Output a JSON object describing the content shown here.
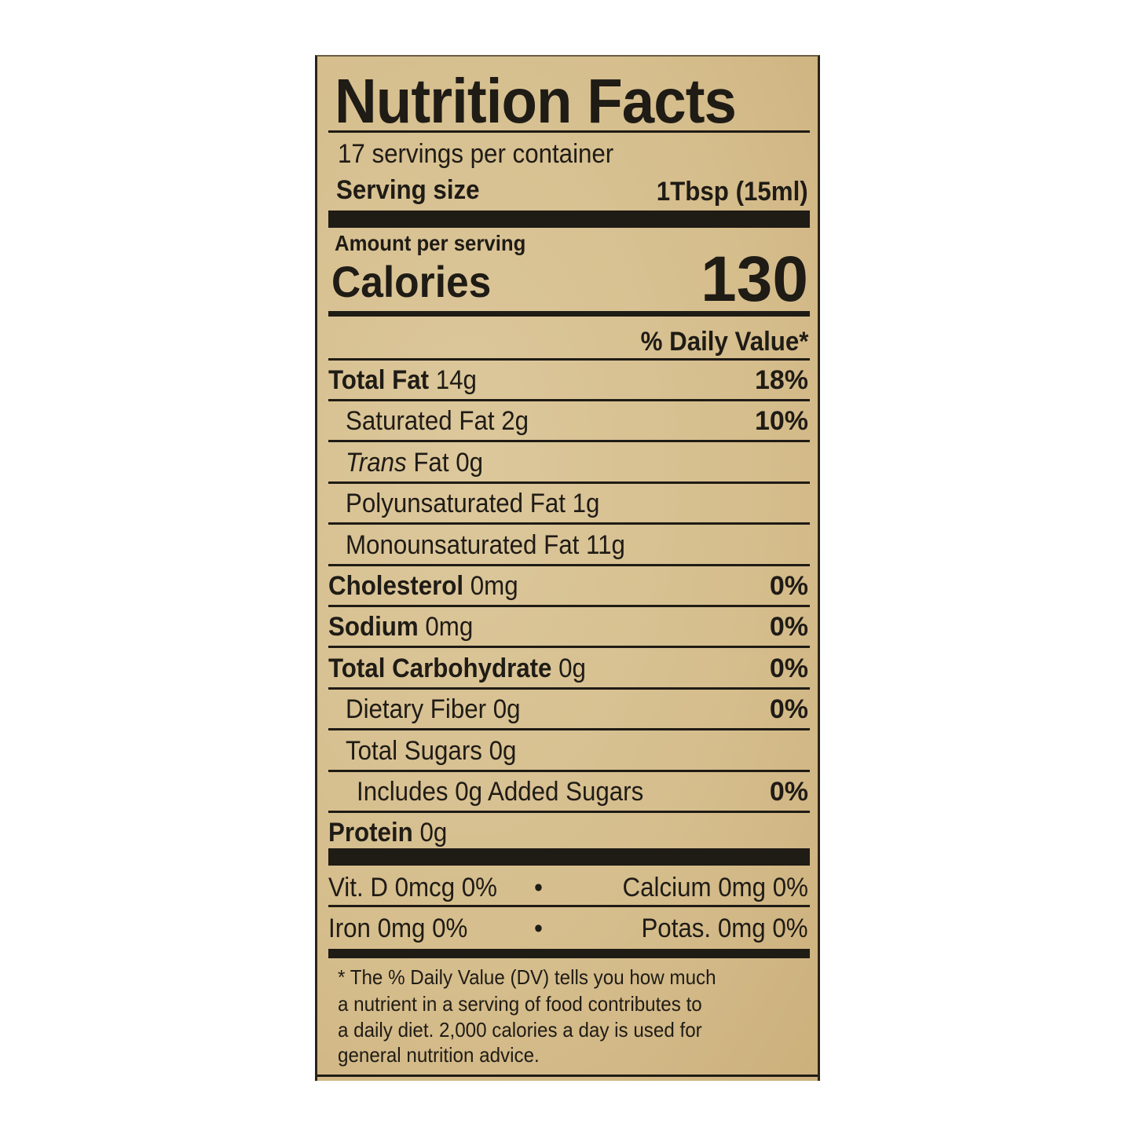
{
  "title": "Nutrition Facts",
  "servings_per_container": "17 servings per container",
  "serving_size_label": "Serving size",
  "serving_size_value": "1Tbsp (15ml)",
  "amount_per_serving": "Amount per serving",
  "calories_label": "Calories",
  "calories_value": "130",
  "daily_value_header": "% Daily Value*",
  "rows": [
    {
      "bold": "Total Fat",
      "italic": "",
      "rest": " 14g",
      "dv": "18%",
      "indent": 0
    },
    {
      "bold": "",
      "italic": "",
      "rest": "Saturated Fat 2g",
      "dv": "10%",
      "indent": 1
    },
    {
      "bold": "",
      "italic": "Trans",
      "rest": " Fat 0g",
      "dv": "",
      "indent": 1
    },
    {
      "bold": "",
      "italic": "",
      "rest": "Polyunsaturated Fat 1g",
      "dv": "",
      "indent": 1
    },
    {
      "bold": "",
      "italic": "",
      "rest": "Monounsaturated Fat 11g",
      "dv": "",
      "indent": 1
    },
    {
      "bold": "Cholesterol",
      "italic": "",
      "rest": " 0mg",
      "dv": "0%",
      "indent": 0
    },
    {
      "bold": "Sodium",
      "italic": "",
      "rest": " 0mg",
      "dv": "0%",
      "indent": 0
    },
    {
      "bold": "Total Carbohydrate",
      "italic": "",
      "rest": " 0g",
      "dv": "0%",
      "indent": 0
    },
    {
      "bold": "",
      "italic": "",
      "rest": "Dietary Fiber 0g",
      "dv": "0%",
      "indent": 1
    },
    {
      "bold": "",
      "italic": "",
      "rest": "Total Sugars 0g",
      "dv": "",
      "indent": 1
    },
    {
      "bold": "",
      "italic": "",
      "rest": "Includes 0g Added Sugars",
      "dv": "0%",
      "indent": 2
    },
    {
      "bold": "Protein",
      "italic": "",
      "rest": " 0g",
      "dv": "",
      "indent": 0
    }
  ],
  "vitamins": {
    "row1_left": "Vit. D 0mcg 0%",
    "row1_right": "Calcium 0mg 0%",
    "row2_left": "Iron 0mg 0%",
    "row2_right": "Potas. 0mg 0%",
    "bullet": "•"
  },
  "footnote": [
    "* The % Daily Value (DV) tells you how much",
    "a nutrient in a serving of food contributes to",
    "a daily diet. 2,000 calories a day is used for",
    "general nutrition advice."
  ]
}
